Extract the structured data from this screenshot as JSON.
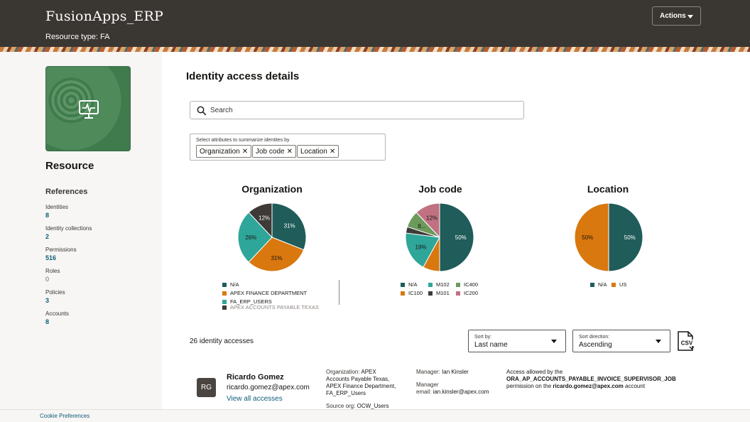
{
  "header": {
    "app_title": "FusionApps_ERP",
    "resource_type_label": "Resource type:",
    "resource_type_value": "FA",
    "actions_label": "Actions"
  },
  "sidebar": {
    "resource_heading": "Resource",
    "references_heading": "References",
    "references": [
      {
        "label": "Identities",
        "value": "8"
      },
      {
        "label": "Identity collections",
        "value": "2"
      },
      {
        "label": "Permissions",
        "value": "516"
      },
      {
        "label": "Roles",
        "value": "0"
      },
      {
        "label": "Policies",
        "value": "3"
      },
      {
        "label": "Accounts",
        "value": "8"
      }
    ]
  },
  "main": {
    "page_title": "Identity access details",
    "search_placeholder": "Search",
    "attributes_label": "Select attributes to summarize identites by",
    "attribute_chips": [
      "Organization",
      "Job code",
      "Location"
    ]
  },
  "chart_data": [
    {
      "type": "pie",
      "title": "Organization",
      "slices": [
        {
          "label": "N/A",
          "value": 31,
          "color": "#1f5c5a"
        },
        {
          "label": "APEX FINANCE DEPARTMENT",
          "value": 31,
          "color": "#d9780f"
        },
        {
          "label": "FA_ERP_USERS",
          "value": 26,
          "color": "#2fa69a"
        },
        {
          "label": "APEX ACCOUNTS PAYABLE TEXAS",
          "value": 12,
          "color": "#3d3a37"
        }
      ],
      "slice_labels": [
        "31%",
        "31%",
        "26%",
        "12%"
      ]
    },
    {
      "type": "pie",
      "title": "Job code",
      "slices": [
        {
          "label": "N/A",
          "value": 50,
          "color": "#1f5c5a"
        },
        {
          "label": "IC100",
          "value": 8,
          "color": "#d9780f"
        },
        {
          "label": "M102",
          "value": 19,
          "color": "#2fa69a"
        },
        {
          "label": "M101",
          "value": 3,
          "color": "#3d3a37"
        },
        {
          "label": "IC400",
          "value": 8,
          "color": "#6c9a5c"
        },
        {
          "label": "IC200",
          "value": 12,
          "color": "#c07282"
        }
      ],
      "slice_labels": [
        "50%",
        "",
        "19%",
        "",
        "8...",
        "12%"
      ]
    },
    {
      "type": "pie",
      "title": "Location",
      "slices": [
        {
          "label": "N/A",
          "value": 50,
          "color": "#1f5c5a"
        },
        {
          "label": "US",
          "value": 50,
          "color": "#d9780f"
        }
      ],
      "slice_labels": [
        "50%",
        "50%"
      ]
    }
  ],
  "results": {
    "count_text": "26 identity accesses",
    "sort_by_label": "Sort by:",
    "sort_by_value": "Last name",
    "sort_direction_label": "Sort direction:",
    "sort_direction_value": "Ascending",
    "csv_label": "CSV"
  },
  "identity": {
    "initials": "RG",
    "name": "Ricardo Gomez",
    "email": "ricardo.gomez@apex.com",
    "view_link": "View all accesses",
    "organization_label": "Organization:",
    "organization_lines": [
      "APEX",
      "Accounts Payable Texas,",
      "APEX Finance Department,",
      "FA_ERP_Users"
    ],
    "source_org_label": "Source org:",
    "source_org_value": "OCW_Users",
    "manager_label": "Manager:",
    "manager_value": "Ian Kinsler",
    "manager_email_label_1": "Manager",
    "manager_email_label_2": "email:",
    "manager_email_value": "ian.kinsler@apex.com",
    "access_line_1": "Access allowed by the",
    "access_permission": "ORA_AP_ACCOUNTS_PAYABLE_INVOICE_SUPERVISOR_JOB",
    "access_line_3a": "permission on the",
    "access_account": "ricardo.gomez@apex.com",
    "access_line_3b": "account"
  },
  "footer": {
    "cookie_label": "Cookie Preferences"
  }
}
